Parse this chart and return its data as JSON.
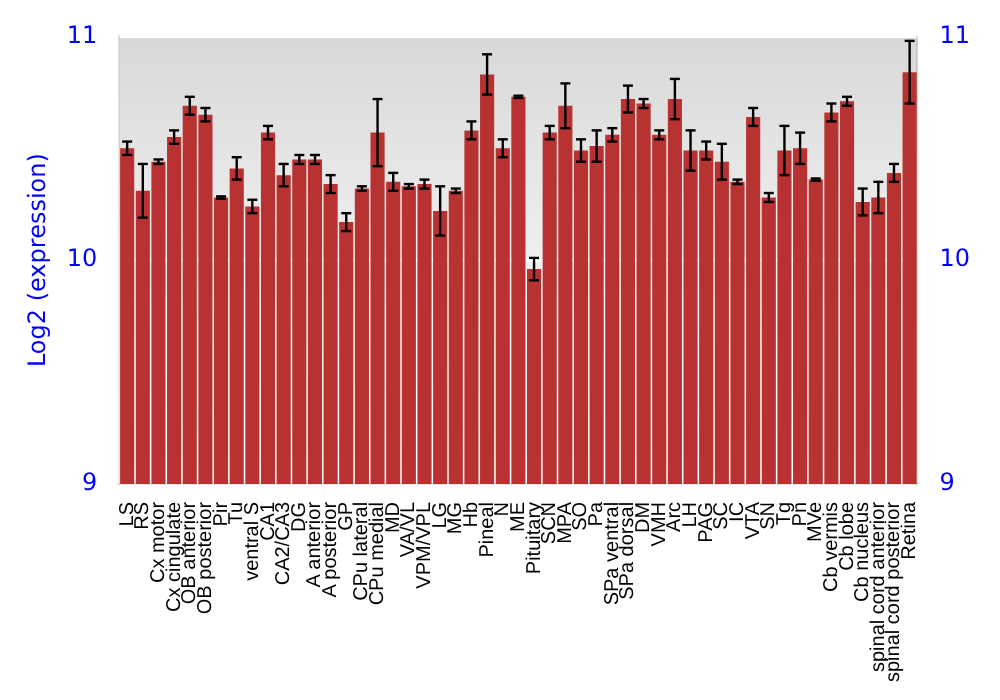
{
  "chart_data": {
    "type": "bar",
    "ylabel": "Log2 (expression)",
    "categories": [
      "LS",
      "RS",
      "Cx motor",
      "Cx cingulate",
      "OB anterior",
      "OB posterior",
      "Pir",
      "Tu",
      "ventral S",
      "CA1",
      "CA2/CA3",
      "DG",
      "A anterior",
      "A posterior",
      "GP",
      "CPu lateral",
      "CPu medial",
      "MD",
      "VA/VL",
      "VPM/VPL",
      "LG",
      "MG",
      "Hb",
      "Pineal",
      "N",
      "ME",
      "Pituitary",
      "SCN",
      "MPA",
      "SO",
      "Pa",
      "SPa ventral",
      "SPa dorsal",
      "DM",
      "VMH",
      "Arc",
      "LH",
      "PAG",
      "SC",
      "IC",
      "VTA",
      "SN",
      "Tg",
      "Pn",
      "MVe",
      "Cb vermis",
      "Cb lobe",
      "Cb nucleus",
      "spinal cord anterior",
      "spinal cord posterior",
      "Retina"
    ],
    "values": [
      10.5,
      10.31,
      10.44,
      10.55,
      10.69,
      10.65,
      10.28,
      10.41,
      10.24,
      10.57,
      10.38,
      10.45,
      10.45,
      10.34,
      10.17,
      10.32,
      10.57,
      10.35,
      10.33,
      10.34,
      10.22,
      10.31,
      10.58,
      10.83,
      10.5,
      10.73,
      9.96,
      10.57,
      10.69,
      10.49,
      10.51,
      10.56,
      10.72,
      10.7,
      10.56,
      10.72,
      10.49,
      10.49,
      10.44,
      10.35,
      10.64,
      10.28,
      10.49,
      10.5,
      10.36,
      10.66,
      10.71,
      10.26,
      10.28,
      10.39,
      10.84
    ],
    "errors": [
      0.03,
      0.12,
      0.01,
      0.03,
      0.04,
      0.03,
      0.005,
      0.05,
      0.03,
      0.03,
      0.05,
      0.02,
      0.02,
      0.04,
      0.04,
      0.01,
      0.15,
      0.04,
      0.01,
      0.02,
      0.11,
      0.01,
      0.04,
      0.09,
      0.04,
      0.005,
      0.05,
      0.03,
      0.1,
      0.05,
      0.07,
      0.03,
      0.06,
      0.02,
      0.02,
      0.09,
      0.09,
      0.04,
      0.08,
      0.01,
      0.04,
      0.02,
      0.11,
      0.07,
      0.005,
      0.04,
      0.02,
      0.06,
      0.07,
      0.04,
      0.14
    ],
    "color": "#b83232",
    "ylim": [
      9,
      11
    ],
    "yticks": [
      9,
      10,
      11
    ],
    "y2lim": [
      9,
      11
    ],
    "y2ticks": [
      9,
      10,
      11
    ],
    "grid": "y"
  }
}
